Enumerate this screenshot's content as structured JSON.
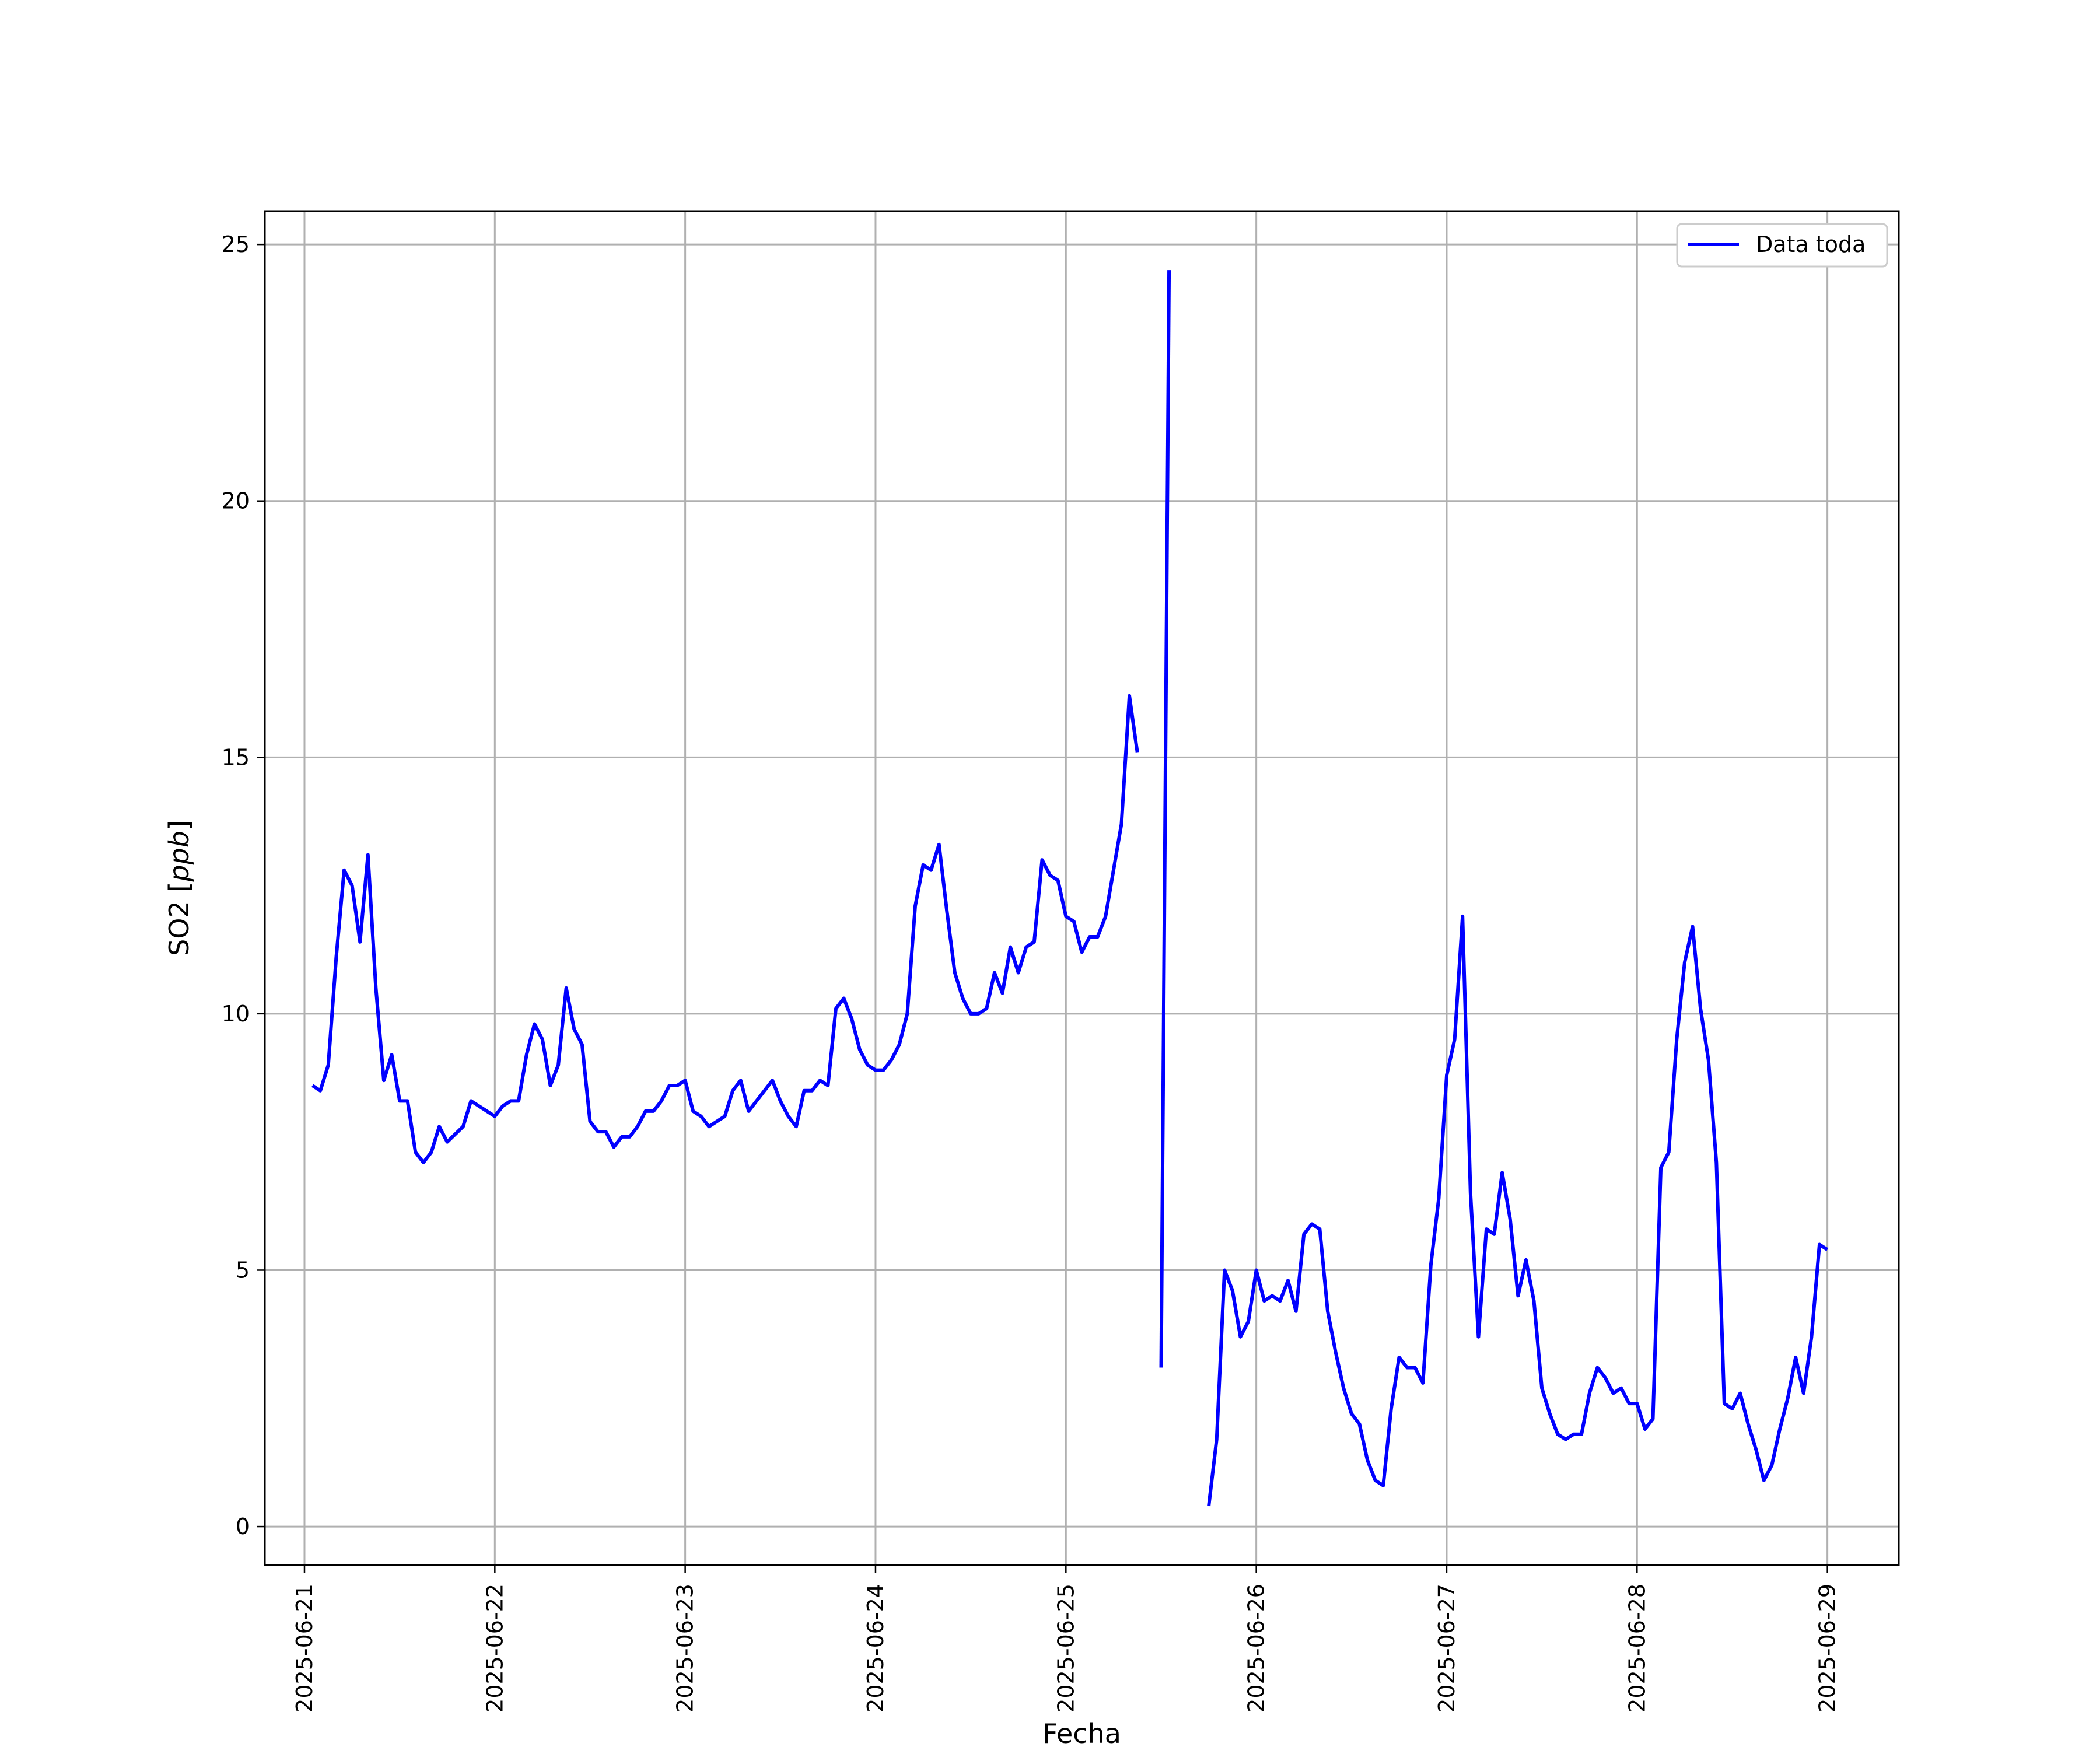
{
  "chart_data": {
    "type": "line",
    "xlabel": "Fecha",
    "ylabel_main": "SO2 [",
    "ylabel_unit": "ppb",
    "ylabel_close": "]",
    "ylim": [
      -0.75,
      25.65
    ],
    "xlim": [
      "2025-06-20T19:00",
      "2025-06-29T09:00"
    ],
    "x_ticks": [
      "2025-06-21",
      "2025-06-22",
      "2025-06-23",
      "2025-06-24",
      "2025-06-25",
      "2025-06-26",
      "2025-06-27",
      "2025-06-28",
      "2025-06-29"
    ],
    "y_ticks": [
      0,
      5,
      10,
      15,
      20,
      25
    ],
    "grid": true,
    "legend": {
      "position": "top-right",
      "entries": [
        "Data toda"
      ]
    },
    "series": [
      {
        "name": "Data toda",
        "color": "#0000ff",
        "points": [
          [
            "2025-06-21T01:00",
            8.6
          ],
          [
            "2025-06-21T02:00",
            8.5
          ],
          [
            "2025-06-21T03:00",
            9.0
          ],
          [
            "2025-06-21T04:00",
            11.1
          ],
          [
            "2025-06-21T05:00",
            12.8
          ],
          [
            "2025-06-21T06:00",
            12.5
          ],
          [
            "2025-06-21T07:00",
            11.4
          ],
          [
            "2025-06-21T08:00",
            13.1
          ],
          [
            "2025-06-21T09:00",
            10.5
          ],
          [
            "2025-06-21T10:00",
            8.7
          ],
          [
            "2025-06-21T11:00",
            9.2
          ],
          [
            "2025-06-21T12:00",
            8.3
          ],
          [
            "2025-06-21T13:00",
            8.3
          ],
          [
            "2025-06-21T14:00",
            7.3
          ],
          [
            "2025-06-21T15:00",
            7.1
          ],
          [
            "2025-06-21T16:00",
            7.3
          ],
          [
            "2025-06-21T17:00",
            7.8
          ],
          [
            "2025-06-21T18:00",
            7.5
          ],
          [
            "2025-06-21T20:00",
            7.8
          ],
          [
            "2025-06-21T21:00",
            8.3
          ],
          [
            "2025-06-22T00:00",
            8.0
          ],
          [
            "2025-06-22T01:00",
            8.2
          ],
          [
            "2025-06-22T02:00",
            8.3
          ],
          [
            "2025-06-22T03:00",
            8.3
          ],
          [
            "2025-06-22T04:00",
            9.2
          ],
          [
            "2025-06-22T05:00",
            9.8
          ],
          [
            "2025-06-22T06:00",
            9.5
          ],
          [
            "2025-06-22T07:00",
            8.6
          ],
          [
            "2025-06-22T08:00",
            9.0
          ],
          [
            "2025-06-22T09:00",
            10.5
          ],
          [
            "2025-06-22T10:00",
            9.7
          ],
          [
            "2025-06-22T11:00",
            9.4
          ],
          [
            "2025-06-22T12:00",
            7.9
          ],
          [
            "2025-06-22T13:00",
            7.7
          ],
          [
            "2025-06-22T14:00",
            7.7
          ],
          [
            "2025-06-22T15:00",
            7.4
          ],
          [
            "2025-06-22T16:00",
            7.6
          ],
          [
            "2025-06-22T17:00",
            7.6
          ],
          [
            "2025-06-22T18:00",
            7.8
          ],
          [
            "2025-06-22T19:00",
            8.1
          ],
          [
            "2025-06-22T20:00",
            8.1
          ],
          [
            "2025-06-22T21:00",
            8.3
          ],
          [
            "2025-06-22T22:00",
            8.6
          ],
          [
            "2025-06-22T23:00",
            8.6
          ],
          [
            "2025-06-23T00:00",
            8.7
          ],
          [
            "2025-06-23T01:00",
            8.1
          ],
          [
            "2025-06-23T02:00",
            8.0
          ],
          [
            "2025-06-23T03:00",
            7.8
          ],
          [
            "2025-06-23T04:00",
            7.9
          ],
          [
            "2025-06-23T05:00",
            8.0
          ],
          [
            "2025-06-23T06:00",
            8.5
          ],
          [
            "2025-06-23T07:00",
            8.7
          ],
          [
            "2025-06-23T08:00",
            8.1
          ],
          [
            "2025-06-23T11:00",
            8.7
          ],
          [
            "2025-06-23T12:00",
            8.3
          ],
          [
            "2025-06-23T13:00",
            8.0
          ],
          [
            "2025-06-23T14:00",
            7.8
          ],
          [
            "2025-06-23T15:00",
            8.5
          ],
          [
            "2025-06-23T16:00",
            8.5
          ],
          [
            "2025-06-23T17:00",
            8.7
          ],
          [
            "2025-06-23T18:00",
            8.6
          ],
          [
            "2025-06-23T19:00",
            10.1
          ],
          [
            "2025-06-23T20:00",
            10.3
          ],
          [
            "2025-06-23T21:00",
            9.9
          ],
          [
            "2025-06-23T22:00",
            9.3
          ],
          [
            "2025-06-23T23:00",
            9.0
          ],
          [
            "2025-06-24T00:00",
            8.9
          ],
          [
            "2025-06-24T01:00",
            8.9
          ],
          [
            "2025-06-24T02:00",
            9.1
          ],
          [
            "2025-06-24T03:00",
            9.4
          ],
          [
            "2025-06-24T04:00",
            10.0
          ],
          [
            "2025-06-24T05:00",
            12.1
          ],
          [
            "2025-06-24T06:00",
            12.9
          ],
          [
            "2025-06-24T07:00",
            12.8
          ],
          [
            "2025-06-24T08:00",
            13.3
          ],
          [
            "2025-06-24T09:00",
            12.0
          ],
          [
            "2025-06-24T10:00",
            10.8
          ],
          [
            "2025-06-24T11:00",
            10.3
          ],
          [
            "2025-06-24T12:00",
            10.0
          ],
          [
            "2025-06-24T13:00",
            10.0
          ],
          [
            "2025-06-24T14:00",
            10.1
          ],
          [
            "2025-06-24T15:00",
            10.8
          ],
          [
            "2025-06-24T16:00",
            10.4
          ],
          [
            "2025-06-24T17:00",
            11.3
          ],
          [
            "2025-06-24T18:00",
            10.8
          ],
          [
            "2025-06-24T19:00",
            11.3
          ],
          [
            "2025-06-24T20:00",
            11.4
          ],
          [
            "2025-06-24T21:00",
            13.0
          ],
          [
            "2025-06-24T22:00",
            12.7
          ],
          [
            "2025-06-24T23:00",
            12.6
          ],
          [
            "2025-06-25T00:00",
            11.9
          ],
          [
            "2025-06-25T01:00",
            11.8
          ],
          [
            "2025-06-25T02:00",
            11.2
          ],
          [
            "2025-06-25T03:00",
            11.5
          ],
          [
            "2025-06-25T04:00",
            11.5
          ],
          [
            "2025-06-25T05:00",
            11.9
          ],
          [
            "2025-06-25T06:00",
            12.8
          ],
          [
            "2025-06-25T07:00",
            13.7
          ],
          [
            "2025-06-25T08:00",
            16.2
          ],
          [
            "2025-06-25T09:00",
            15.1
          ],
          null,
          [
            "2025-06-25T12:00",
            3.1
          ],
          [
            "2025-06-25T13:00",
            24.5
          ],
          null,
          [
            "2025-06-25T18:00",
            0.4
          ],
          [
            "2025-06-25T19:00",
            1.7
          ],
          [
            "2025-06-25T20:00",
            5.0
          ],
          [
            "2025-06-25T21:00",
            4.6
          ],
          [
            "2025-06-25T22:00",
            3.7
          ],
          [
            "2025-06-25T23:00",
            4.0
          ],
          [
            "2025-06-26T00:00",
            5.0
          ],
          [
            "2025-06-26T01:00",
            4.4
          ],
          [
            "2025-06-26T02:00",
            4.5
          ],
          [
            "2025-06-26T03:00",
            4.4
          ],
          [
            "2025-06-26T04:00",
            4.8
          ],
          [
            "2025-06-26T05:00",
            4.2
          ],
          [
            "2025-06-26T06:00",
            5.7
          ],
          [
            "2025-06-26T07:00",
            5.9
          ],
          [
            "2025-06-26T08:00",
            5.8
          ],
          [
            "2025-06-26T09:00",
            4.2
          ],
          [
            "2025-06-26T10:00",
            3.4
          ],
          [
            "2025-06-26T11:00",
            2.7
          ],
          [
            "2025-06-26T12:00",
            2.2
          ],
          [
            "2025-06-26T13:00",
            2.0
          ],
          [
            "2025-06-26T14:00",
            1.3
          ],
          [
            "2025-06-26T15:00",
            0.9
          ],
          [
            "2025-06-26T16:00",
            0.8
          ],
          [
            "2025-06-26T17:00",
            2.3
          ],
          [
            "2025-06-26T18:00",
            3.3
          ],
          [
            "2025-06-26T19:00",
            3.1
          ],
          [
            "2025-06-26T20:00",
            3.1
          ],
          [
            "2025-06-26T21:00",
            2.8
          ],
          [
            "2025-06-26T22:00",
            5.1
          ],
          [
            "2025-06-26T23:00",
            6.4
          ],
          [
            "2025-06-27T00:00",
            8.8
          ],
          [
            "2025-06-27T01:00",
            9.5
          ],
          [
            "2025-06-27T02:00",
            11.9
          ],
          [
            "2025-06-27T03:00",
            6.5
          ],
          [
            "2025-06-27T04:00",
            3.7
          ],
          [
            "2025-06-27T05:00",
            5.8
          ],
          [
            "2025-06-27T06:00",
            5.7
          ],
          [
            "2025-06-27T07:00",
            6.9
          ],
          [
            "2025-06-27T08:00",
            6.0
          ],
          [
            "2025-06-27T09:00",
            4.5
          ],
          [
            "2025-06-27T10:00",
            5.2
          ],
          [
            "2025-06-27T11:00",
            4.4
          ],
          [
            "2025-06-27T12:00",
            2.7
          ],
          [
            "2025-06-27T13:00",
            2.2
          ],
          [
            "2025-06-27T14:00",
            1.8
          ],
          [
            "2025-06-27T15:00",
            1.7
          ],
          [
            "2025-06-27T16:00",
            1.8
          ],
          [
            "2025-06-27T17:00",
            1.8
          ],
          [
            "2025-06-27T18:00",
            2.6
          ],
          [
            "2025-06-27T19:00",
            3.1
          ],
          [
            "2025-06-27T20:00",
            2.9
          ],
          [
            "2025-06-27T21:00",
            2.6
          ],
          [
            "2025-06-27T22:00",
            2.7
          ],
          [
            "2025-06-27T23:00",
            2.4
          ],
          [
            "2025-06-28T00:00",
            2.4
          ],
          [
            "2025-06-28T01:00",
            1.9
          ],
          [
            "2025-06-28T02:00",
            2.1
          ],
          [
            "2025-06-28T03:00",
            7.0
          ],
          [
            "2025-06-28T04:00",
            7.3
          ],
          [
            "2025-06-28T05:00",
            9.5
          ],
          [
            "2025-06-28T06:00",
            11.0
          ],
          [
            "2025-06-28T07:00",
            11.7
          ],
          [
            "2025-06-28T08:00",
            10.1
          ],
          [
            "2025-06-28T09:00",
            9.1
          ],
          [
            "2025-06-28T10:00",
            7.1
          ],
          [
            "2025-06-28T11:00",
            2.4
          ],
          [
            "2025-06-28T12:00",
            2.3
          ],
          [
            "2025-06-28T13:00",
            2.6
          ],
          [
            "2025-06-28T14:00",
            2.0
          ],
          [
            "2025-06-28T15:00",
            1.5
          ],
          [
            "2025-06-28T16:00",
            0.9
          ],
          [
            "2025-06-28T17:00",
            1.2
          ],
          [
            "2025-06-28T18:00",
            1.9
          ],
          [
            "2025-06-28T19:00",
            2.5
          ],
          [
            "2025-06-28T20:00",
            3.3
          ],
          [
            "2025-06-28T21:00",
            2.6
          ],
          [
            "2025-06-28T22:00",
            3.7
          ],
          [
            "2025-06-28T23:00",
            5.5
          ],
          [
            "2025-06-29T00:00",
            5.4
          ]
        ]
      }
    ]
  }
}
